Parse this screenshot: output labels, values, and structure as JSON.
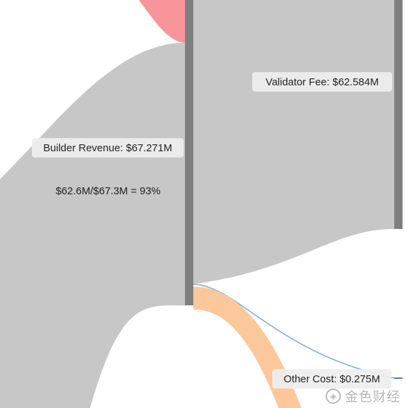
{
  "chart_data": {
    "type": "sankey",
    "units": "$M",
    "nodes": [
      {
        "id": "builder_revenue",
        "label": "Builder Revenue: $67.271M",
        "value": 67.271
      },
      {
        "id": "validator_fee",
        "label": "Validator Fee: $62.584M",
        "value": 62.584
      },
      {
        "id": "other_cost",
        "label": "Other Cost: $0.275M",
        "value": 0.275
      }
    ],
    "links": [
      {
        "source": "builder_revenue",
        "target": "validator_fee",
        "value": 62.584,
        "color": "#c7c7c7"
      },
      {
        "source": "builder_revenue",
        "target": "other_cost",
        "value": 0.275,
        "color": "#8fb4d6"
      },
      {
        "source": "builder_revenue",
        "target": "",
        "value": 4.4,
        "color": "#fcc89b"
      }
    ],
    "incoming_flows": [
      {
        "value": 9.4,
        "color": "#f7959a"
      },
      {
        "value": 57.9,
        "color": "#c7c7c7"
      }
    ],
    "annotation": "$62.6M/$67.3M = 93%"
  },
  "colors": {
    "node": "#7f7f7f",
    "gray_flow": "#c7c7c7",
    "red_flow": "#f7959a",
    "orange_flow": "#fcc89b",
    "blue_flow": "#8fb4d6"
  },
  "watermark": {
    "text": "金色财经",
    "logo_icon": "coin-logo-icon"
  }
}
